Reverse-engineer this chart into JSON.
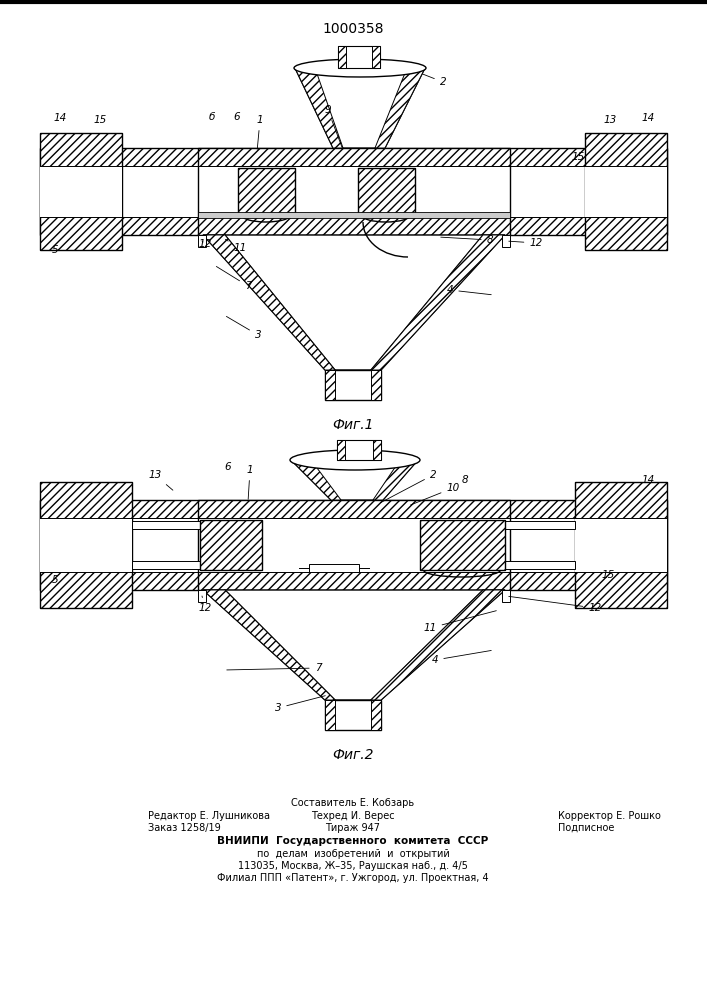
{
  "title": "1000358",
  "fig1_label": "Фиг.1",
  "fig2_label": "Фиг.2",
  "footer_line0_center": "Составитель Е. Кобзарь",
  "footer_line1_left": "Редактор Е. Лушникова",
  "footer_line1_center": "Техред И. Верес",
  "footer_line1_right": "Корректор Е. Рошко",
  "footer_line2_left": "Заказ 1258/19",
  "footer_line2_center": "Тираж 947",
  "footer_line2_right": "Подписное",
  "footer_vniipi": "ВНИИПИ  Государственного  комитета  СССР",
  "footer_po": "по  делам  изобретений  и  открытий",
  "footer_addr1": "113035, Москва, Ж–35, Раушская наб., д. 4/5",
  "footer_addr2": "Филиал ППП «Патент», г. Ужгород, ул. Проектная, 4"
}
